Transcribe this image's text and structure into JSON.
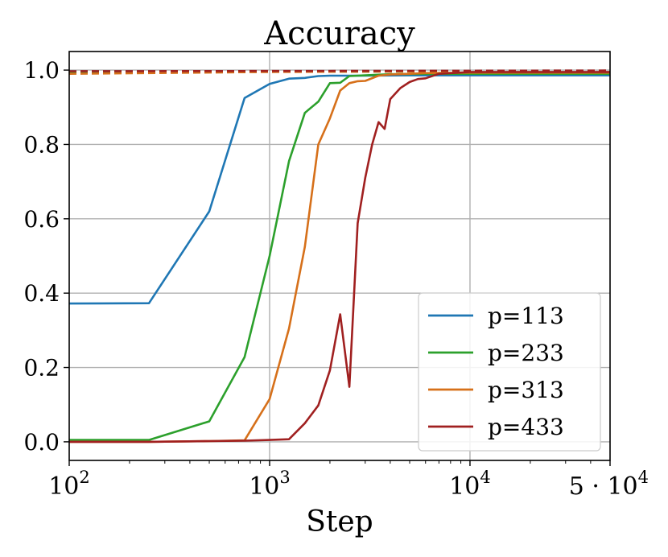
{
  "chart_data": {
    "type": "line",
    "title": "Accuracy",
    "xlabel": "Step",
    "ylabel": "",
    "x_scale": "log",
    "xlim": [
      100,
      50000
    ],
    "ylim": [
      -0.05,
      1.05
    ],
    "grid": true,
    "legend_position": "lower-right",
    "x_ticks": [
      {
        "value": 100,
        "base": "10",
        "exp": "2"
      },
      {
        "value": 1000,
        "base": "10",
        "exp": "3"
      },
      {
        "value": 10000,
        "base": "10",
        "exp": "4"
      },
      {
        "value": 50000,
        "base": "5 · 10",
        "exp": "4"
      }
    ],
    "y_ticks": [
      {
        "value": 0.0,
        "label": "0.0"
      },
      {
        "value": 0.2,
        "label": "0.2"
      },
      {
        "value": 0.4,
        "label": "0.4"
      },
      {
        "value": 0.6,
        "label": "0.6"
      },
      {
        "value": 0.8,
        "label": "0.8"
      },
      {
        "value": 1.0,
        "label": "1.0"
      }
    ],
    "series": [
      {
        "name": "p=113",
        "color": "#1f77b4",
        "style": "solid",
        "x": [
          100,
          250,
          500,
          750,
          1000,
          1250,
          1500,
          1750,
          2000,
          3000,
          5000,
          10000,
          50000
        ],
        "y": [
          0.372,
          0.373,
          0.62,
          0.925,
          0.963,
          0.977,
          0.979,
          0.984,
          0.985,
          0.985,
          0.986,
          0.986,
          0.986
        ]
      },
      {
        "name": "p=233",
        "color": "#2ca02c",
        "style": "solid",
        "x": [
          100,
          250,
          500,
          750,
          1000,
          1250,
          1500,
          1750,
          2000,
          2250,
          2500,
          3000,
          4000,
          6000,
          10000,
          50000
        ],
        "y": [
          0.005,
          0.005,
          0.055,
          0.228,
          0.5,
          0.755,
          0.885,
          0.915,
          0.965,
          0.966,
          0.984,
          0.986,
          0.989,
          0.99,
          0.99,
          0.99
        ]
      },
      {
        "name": "p=313",
        "color": "#d6701a",
        "style": "solid",
        "x": [
          100,
          250,
          500,
          750,
          1000,
          1250,
          1500,
          1750,
          2000,
          2250,
          2500,
          2750,
          3000,
          3500,
          4000,
          5000,
          6000,
          10000,
          50000
        ],
        "y": [
          0.0,
          0.0,
          0.002,
          0.004,
          0.115,
          0.305,
          0.525,
          0.8,
          0.87,
          0.945,
          0.965,
          0.97,
          0.971,
          0.985,
          0.988,
          0.99,
          0.992,
          0.993,
          0.993
        ]
      },
      {
        "name": "p=433",
        "color": "#a02020",
        "style": "solid",
        "x": [
          100,
          250,
          500,
          750,
          1000,
          1250,
          1500,
          1750,
          2000,
          2250,
          2500,
          2750,
          3000,
          3250,
          3500,
          3750,
          4000,
          4500,
          5000,
          5500,
          6000,
          7000,
          10000,
          50000
        ],
        "y": [
          0.0,
          0.0,
          0.002,
          0.003,
          0.005,
          0.007,
          0.05,
          0.098,
          0.192,
          0.343,
          0.148,
          0.588,
          0.71,
          0.8,
          0.86,
          0.842,
          0.922,
          0.952,
          0.968,
          0.976,
          0.978,
          0.99,
          0.995,
          0.995
        ]
      },
      {
        "name": "",
        "color": "#1f77b4",
        "style": "dashed",
        "x": [
          100,
          50000
        ],
        "y": [
          0.997,
          0.997
        ]
      },
      {
        "name": "",
        "color": "#2ca02c",
        "style": "dashed",
        "x": [
          100,
          50000
        ],
        "y": [
          0.995,
          0.997
        ]
      },
      {
        "name": "",
        "color": "#d6701a",
        "style": "dashed",
        "x": [
          100,
          1000,
          50000
        ],
        "y": [
          0.99,
          0.995,
          0.998
        ]
      },
      {
        "name": "",
        "color": "#a02020",
        "style": "dashed",
        "x": [
          100,
          5000,
          50000
        ],
        "y": [
          0.997,
          0.998,
          0.999
        ]
      }
    ]
  }
}
